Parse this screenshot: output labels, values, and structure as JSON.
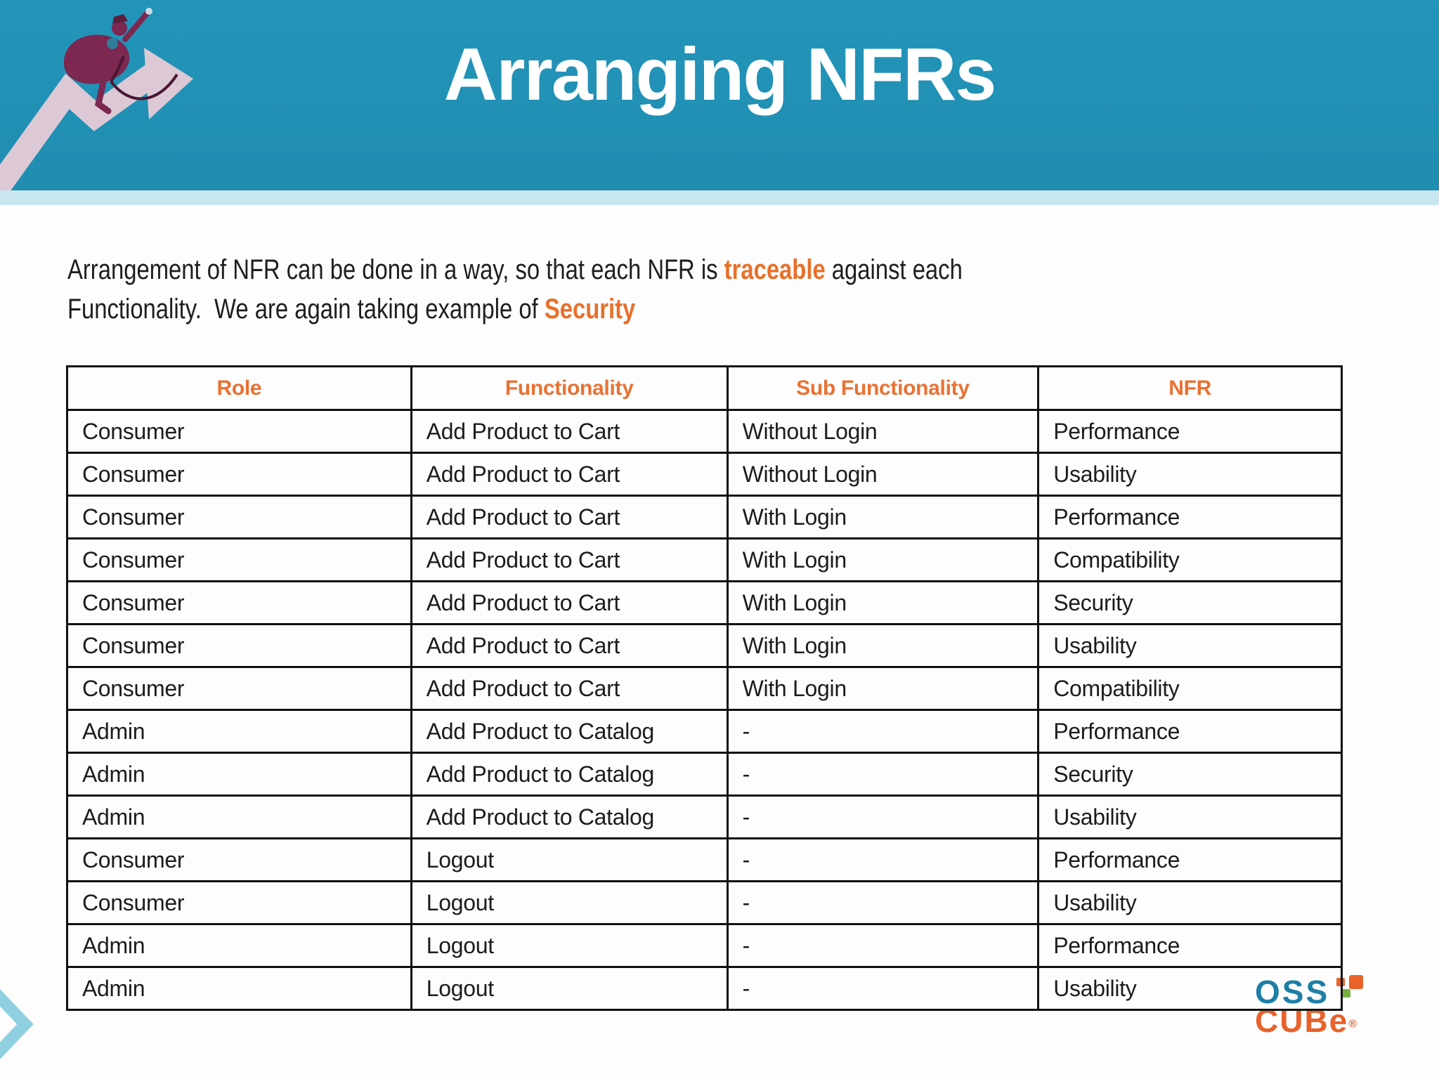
{
  "title": "Arranging NFRs",
  "intro": {
    "line1": {
      "before": "Arrangement of NFR can be done in a way, so that each NFR is ",
      "highlight": "traceable",
      "after": " against each"
    },
    "line2": {
      "before": "Functionality.  We are again taking example of ",
      "highlight": "Security"
    }
  },
  "table": {
    "headers": [
      "Role",
      "Functionality",
      "Sub Functionality",
      "NFR"
    ],
    "rows": [
      [
        "Consumer",
        "Add Product to Cart",
        "Without Login",
        "Performance"
      ],
      [
        "Consumer",
        "Add Product to Cart",
        "Without Login",
        "Usability"
      ],
      [
        "Consumer",
        "Add Product to Cart",
        "With Login",
        "Performance"
      ],
      [
        "Consumer",
        "Add Product to Cart",
        "With Login",
        "Compatibility"
      ],
      [
        "Consumer",
        "Add Product to Cart",
        "With Login",
        "Security"
      ],
      [
        "Consumer",
        "Add Product to Cart",
        "With Login",
        "Usability"
      ],
      [
        "Consumer",
        "Add Product to Cart",
        "With Login",
        "Compatibility"
      ],
      [
        "Admin",
        "Add Product to Catalog",
        "-",
        "Performance"
      ],
      [
        "Admin",
        "Add Product to Catalog",
        "-",
        "Security"
      ],
      [
        "Admin",
        "Add Product to Catalog",
        "-",
        "Usability"
      ],
      [
        "Consumer",
        "Logout",
        "-",
        "Performance"
      ],
      [
        "Consumer",
        "Logout",
        "-",
        "Usability"
      ],
      [
        "Admin",
        "Logout",
        "-",
        "Performance"
      ],
      [
        "Admin",
        "Logout",
        "-",
        "Usability"
      ]
    ]
  },
  "logo": {
    "line1": "OSS",
    "line2": "CUBe",
    "registered": "®"
  },
  "icons": {
    "illustration": "rider-on-growth-arrow-illustration",
    "logo_cube": "cube-icon",
    "chevron": "chevron-right-icon"
  },
  "colors": {
    "banner_teal": "#2193b7",
    "stripe_light_blue": "#c9e6f0",
    "accent_orange": "#e8702a",
    "table_header_orange": "#e97132",
    "table_border": "#101010",
    "logo_blue": "#1e7fa6",
    "logo_orange": "#e8622a",
    "logo_green": "#76b043",
    "chevron_blue": "#8fd0e0",
    "illustration_arrow_pink": "#dcc9d5",
    "illustration_rider_maroon": "#7c2851"
  }
}
